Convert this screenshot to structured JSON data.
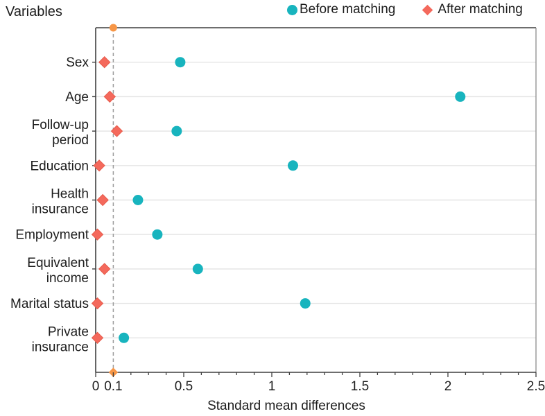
{
  "header": {
    "title": "Variables",
    "legend": [
      {
        "label": "Before matching",
        "marker": "circle-icon",
        "color": "#18b4be"
      },
      {
        "label": "After matching",
        "marker": "diamond-icon",
        "color": "#f4695c"
      }
    ]
  },
  "chart_data": {
    "type": "scatter",
    "variant": "horizontal dot plot (standardized mean differences / love plot)",
    "title": "Variables",
    "xlabel": "Standard mean differences",
    "xlim": [
      0,
      2.5
    ],
    "x_ticks": [
      {
        "value": 0,
        "label": "0"
      },
      {
        "value": 0.1,
        "label": "0.1"
      },
      {
        "value": 0.5,
        "label": "0.5"
      },
      {
        "value": 1,
        "label": "1"
      },
      {
        "value": 1.5,
        "label": "1.5"
      },
      {
        "value": 2,
        "label": "2"
      },
      {
        "value": 2.5,
        "label": "2.5"
      }
    ],
    "x_minor_tick_step": 0.1,
    "grid": "horizontal",
    "legend_position": "top",
    "reference_line": {
      "x": 0.1,
      "style": "dashed",
      "color": "#9d9d9d",
      "end_marker_color": "#f79646"
    },
    "categories": [
      "Sex",
      "Age",
      "Follow-up period",
      "Education",
      "Health insurance",
      "Employment",
      "Equivalent income",
      "Marital status",
      "Private insurance"
    ],
    "category_label_lines": [
      [
        "Sex"
      ],
      [
        "Age"
      ],
      [
        "Follow-up",
        "period"
      ],
      [
        "Education"
      ],
      [
        "Health",
        "insurance"
      ],
      [
        "Employment"
      ],
      [
        "Equivalent",
        "income"
      ],
      [
        "Marital status"
      ],
      [
        "Private",
        "insurance"
      ]
    ],
    "series": [
      {
        "name": "Before matching",
        "marker": "circle",
        "color": "#18b4be",
        "stroke": "#18b4be",
        "values": [
          0.48,
          2.07,
          0.46,
          1.12,
          0.24,
          0.35,
          0.58,
          1.19,
          0.16
        ]
      },
      {
        "name": "After matching",
        "marker": "diamond",
        "color": "#f4695c",
        "stroke": "#e85b4b",
        "values": [
          0.05,
          0.08,
          0.12,
          0.02,
          0.04,
          0.01,
          0.05,
          0.01,
          0.01
        ]
      }
    ],
    "colors": {
      "axis": "#3f3f3f",
      "right_border": "#8c8c8c",
      "gridline": "#e4e4e4",
      "text": "#1c1c1c"
    }
  }
}
